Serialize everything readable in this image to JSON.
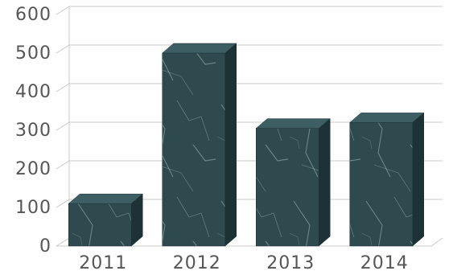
{
  "chart_data": {
    "type": "bar",
    "categories": [
      "2011",
      "2012",
      "2013",
      "2014"
    ],
    "values": [
      110,
      500,
      305,
      320
    ],
    "title": "",
    "xlabel": "",
    "ylabel": "",
    "ylim": [
      0,
      600
    ],
    "y_ticks": [
      "0",
      "100",
      "200",
      "300",
      "400",
      "500",
      "600"
    ],
    "grid": true,
    "legend": "none",
    "style": "3d-column",
    "colors": {
      "bar_front": "#2e4a4f",
      "bar_top": "#3d5e63",
      "bar_side": "#1c3236",
      "bar_texture": "#c9d6d6",
      "gridline": "#c8c8c8",
      "axis_text": "#555555"
    }
  }
}
